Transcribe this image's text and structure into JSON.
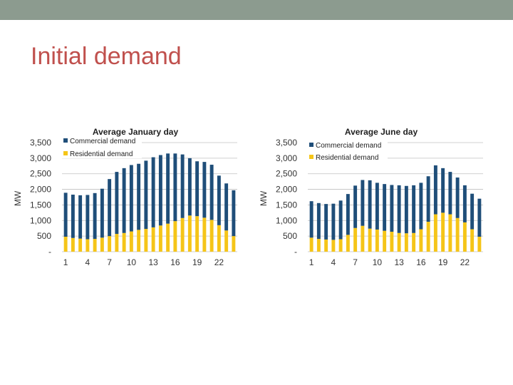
{
  "slide": {
    "title": "Initial demand"
  },
  "colors": {
    "topbar": "#8c9b8f",
    "title": "#c0504d",
    "commercial": "#1f4e79",
    "residential": "#f5c518",
    "grid": "#c0c0c0"
  },
  "chart_data": [
    {
      "type": "bar",
      "stacked": true,
      "title": "Average January day",
      "ylabel": "MW",
      "xlabel": "",
      "ylim": [
        0,
        3500
      ],
      "yticks": [
        0,
        500,
        1000,
        1500,
        2000,
        2500,
        3000,
        3500
      ],
      "ytick_labels": [
        "-",
        "500",
        "1,000",
        "1,500",
        "2,000",
        "2,500",
        "3,000",
        "3,500"
      ],
      "categories": [
        1,
        2,
        3,
        4,
        5,
        6,
        7,
        8,
        9,
        10,
        11,
        12,
        13,
        14,
        15,
        16,
        17,
        18,
        19,
        20,
        21,
        22,
        23,
        24
      ],
      "xtick_labels": [
        "1",
        "4",
        "7",
        "10",
        "13",
        "16",
        "19",
        "22"
      ],
      "xtick_positions": [
        1,
        4,
        7,
        10,
        13,
        16,
        19,
        22
      ],
      "grid": true,
      "legend_position": "top-left",
      "series": [
        {
          "name": "Residential demand",
          "values": [
            480,
            440,
            420,
            400,
            410,
            450,
            500,
            570,
            600,
            650,
            700,
            730,
            780,
            840,
            900,
            980,
            1080,
            1160,
            1140,
            1090,
            1020,
            850,
            680,
            500
          ]
        },
        {
          "name": "Commercial demand",
          "values": [
            1410,
            1390,
            1390,
            1420,
            1470,
            1570,
            1830,
            1990,
            2080,
            2130,
            2120,
            2190,
            2250,
            2260,
            2250,
            2170,
            2040,
            1840,
            1760,
            1790,
            1770,
            1590,
            1510,
            1470
          ]
        }
      ]
    },
    {
      "type": "bar",
      "stacked": true,
      "title": "Average June day",
      "ylabel": "MW",
      "xlabel": "",
      "ylim": [
        0,
        3500
      ],
      "yticks": [
        0,
        500,
        1000,
        1500,
        2000,
        2500,
        3000,
        3500
      ],
      "ytick_labels": [
        "-",
        "500",
        "1,000",
        "1,500",
        "2,000",
        "2,500",
        "3,000",
        "3,500"
      ],
      "categories": [
        1,
        2,
        3,
        4,
        5,
        6,
        7,
        8,
        9,
        10,
        11,
        12,
        13,
        14,
        15,
        16,
        17,
        18,
        19,
        20,
        21,
        22,
        23,
        24
      ],
      "xtick_labels": [
        "1",
        "4",
        "7",
        "10",
        "13",
        "16",
        "19",
        "22"
      ],
      "xtick_positions": [
        1,
        4,
        7,
        10,
        13,
        16,
        19,
        22
      ],
      "grid": true,
      "legend_position": "top-left",
      "series": [
        {
          "name": "Residential demand",
          "values": [
            450,
            410,
            390,
            380,
            400,
            540,
            760,
            830,
            740,
            710,
            670,
            640,
            600,
            590,
            600,
            720,
            960,
            1200,
            1250,
            1200,
            1080,
            940,
            720,
            480
          ]
        },
        {
          "name": "Commercial demand",
          "values": [
            1170,
            1150,
            1140,
            1160,
            1240,
            1310,
            1360,
            1470,
            1550,
            1500,
            1500,
            1500,
            1530,
            1520,
            1530,
            1490,
            1460,
            1570,
            1430,
            1360,
            1300,
            1190,
            1140,
            1220
          ]
        }
      ]
    }
  ]
}
